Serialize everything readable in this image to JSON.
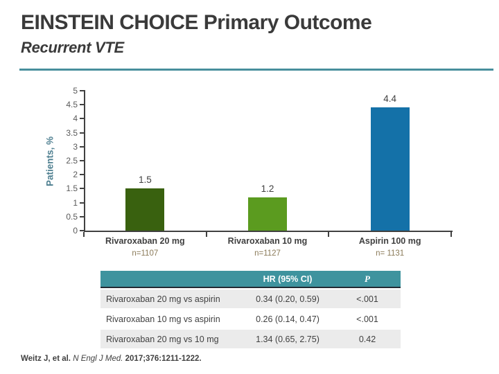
{
  "slide": {
    "title": "EINSTEIN CHOICE Primary Outcome",
    "subtitle": "Recurrent VTE"
  },
  "colors": {
    "accent_teal": "#3e939e",
    "title_text": "#3a3a3a",
    "axis_text": "#595959",
    "n_text": "#8a7a58",
    "table_alt_row": "#ebebeb",
    "header_border": "#222a33"
  },
  "chart_data": {
    "type": "bar",
    "title": "",
    "xlabel": "",
    "ylabel": "Patients, %",
    "ylim": [
      0,
      5
    ],
    "yticks": [
      5,
      4.5,
      4,
      3.5,
      3,
      2.5,
      2,
      1.5,
      1,
      0.5,
      0
    ],
    "grid": false,
    "legend": "none",
    "categories": [
      "Rivaroxaban 20 mg",
      "Rivaroxaban 10 mg",
      "Aspirin 100 mg"
    ],
    "group_ns": [
      "n=1107",
      "n=1127",
      "n= 1131"
    ],
    "values": [
      1.5,
      1.2,
      4.4
    ],
    "value_labels": [
      "1.5",
      "1.2",
      "4.4"
    ],
    "bar_colors": [
      "#39610f",
      "#5b9b1f",
      "#1471a8"
    ]
  },
  "table": {
    "headers": [
      "HR (95% CI)",
      "P"
    ],
    "rows": [
      {
        "label": "Rivaroxaban 20 mg vs aspirin",
        "hr": "0.34 (0.20, 0.59)",
        "p": "<.001"
      },
      {
        "label": "Rivaroxaban 10 mg vs aspirin",
        "hr": "0.26 (0.14, 0.47)",
        "p": "<.001"
      },
      {
        "label": "Rivaroxaban 20 mg vs 10 mg",
        "hr": "1.34 (0.65, 2.75)",
        "p": "0.42"
      }
    ]
  },
  "citation": {
    "authors": "Weitz J, et al.",
    "journal": " N Engl J Med. ",
    "reference": "2017;376:1211-1222."
  }
}
